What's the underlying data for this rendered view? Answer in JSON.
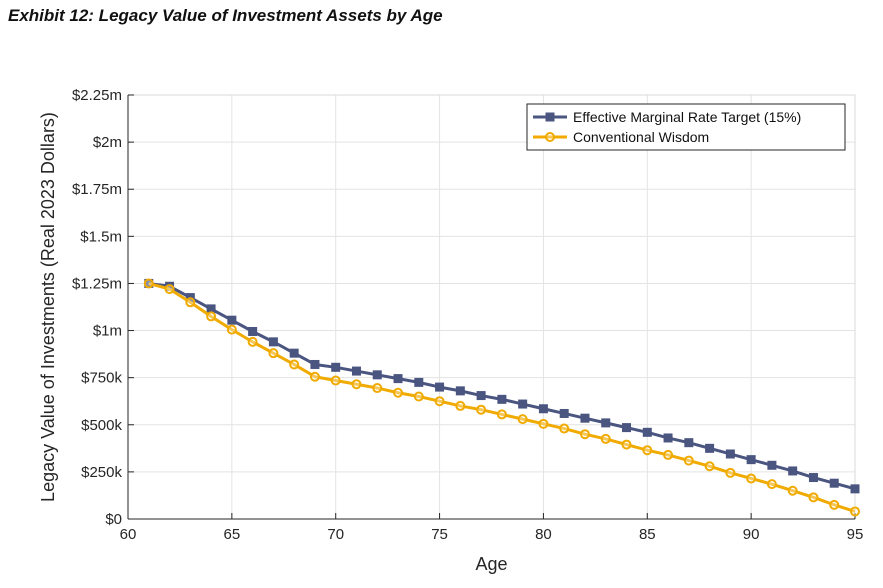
{
  "page": {
    "title": "Exhibit 12: Legacy Value of Investment Assets by Age"
  },
  "chart_data": {
    "type": "line",
    "title": "",
    "xlabel": "Age",
    "ylabel": "Legacy Value of Investments (Real 2023 Dollars)",
    "xlim": [
      60,
      95
    ],
    "ylim": [
      0,
      2250000
    ],
    "x_ticks": [
      60,
      65,
      70,
      75,
      80,
      85,
      90,
      95
    ],
    "y_ticks": [
      0,
      250000,
      500000,
      750000,
      1000000,
      1250000,
      1500000,
      1750000,
      2000000,
      2250000
    ],
    "x_tick_labels": [
      "60",
      "65",
      "70",
      "75",
      "80",
      "85",
      "90",
      "95"
    ],
    "y_tick_labels": [
      "$0",
      "$250k",
      "$500k",
      "$750k",
      "$1m",
      "$1.25m",
      "$1.5m",
      "$1.75m",
      "$2m",
      "$2.25m"
    ],
    "grid": true,
    "legend_position": "top-right",
    "x": [
      61,
      62,
      63,
      64,
      65,
      66,
      67,
      68,
      69,
      70,
      71,
      72,
      73,
      74,
      75,
      76,
      77,
      78,
      79,
      80,
      81,
      82,
      83,
      84,
      85,
      86,
      87,
      88,
      89,
      90,
      91,
      92,
      93,
      94,
      95
    ],
    "series": [
      {
        "name": "Effective Marginal Rate Target (15%)",
        "color": "#4a5580",
        "marker": "square",
        "values": [
          1250000,
          1235000,
          1175000,
          1115000,
          1055000,
          995000,
          940000,
          880000,
          820000,
          805000,
          785000,
          765000,
          745000,
          725000,
          700000,
          680000,
          655000,
          635000,
          610000,
          585000,
          560000,
          535000,
          510000,
          485000,
          460000,
          430000,
          405000,
          375000,
          345000,
          315000,
          285000,
          255000,
          220000,
          190000,
          160000
        ]
      },
      {
        "name": "Conventional Wisdom",
        "color": "#f0aa00",
        "marker": "circle",
        "values": [
          1250000,
          1220000,
          1150000,
          1075000,
          1005000,
          940000,
          880000,
          820000,
          755000,
          735000,
          715000,
          695000,
          670000,
          650000,
          625000,
          600000,
          580000,
          555000,
          530000,
          505000,
          480000,
          450000,
          425000,
          395000,
          365000,
          340000,
          310000,
          280000,
          245000,
          215000,
          185000,
          150000,
          115000,
          75000,
          40000
        ]
      }
    ]
  }
}
